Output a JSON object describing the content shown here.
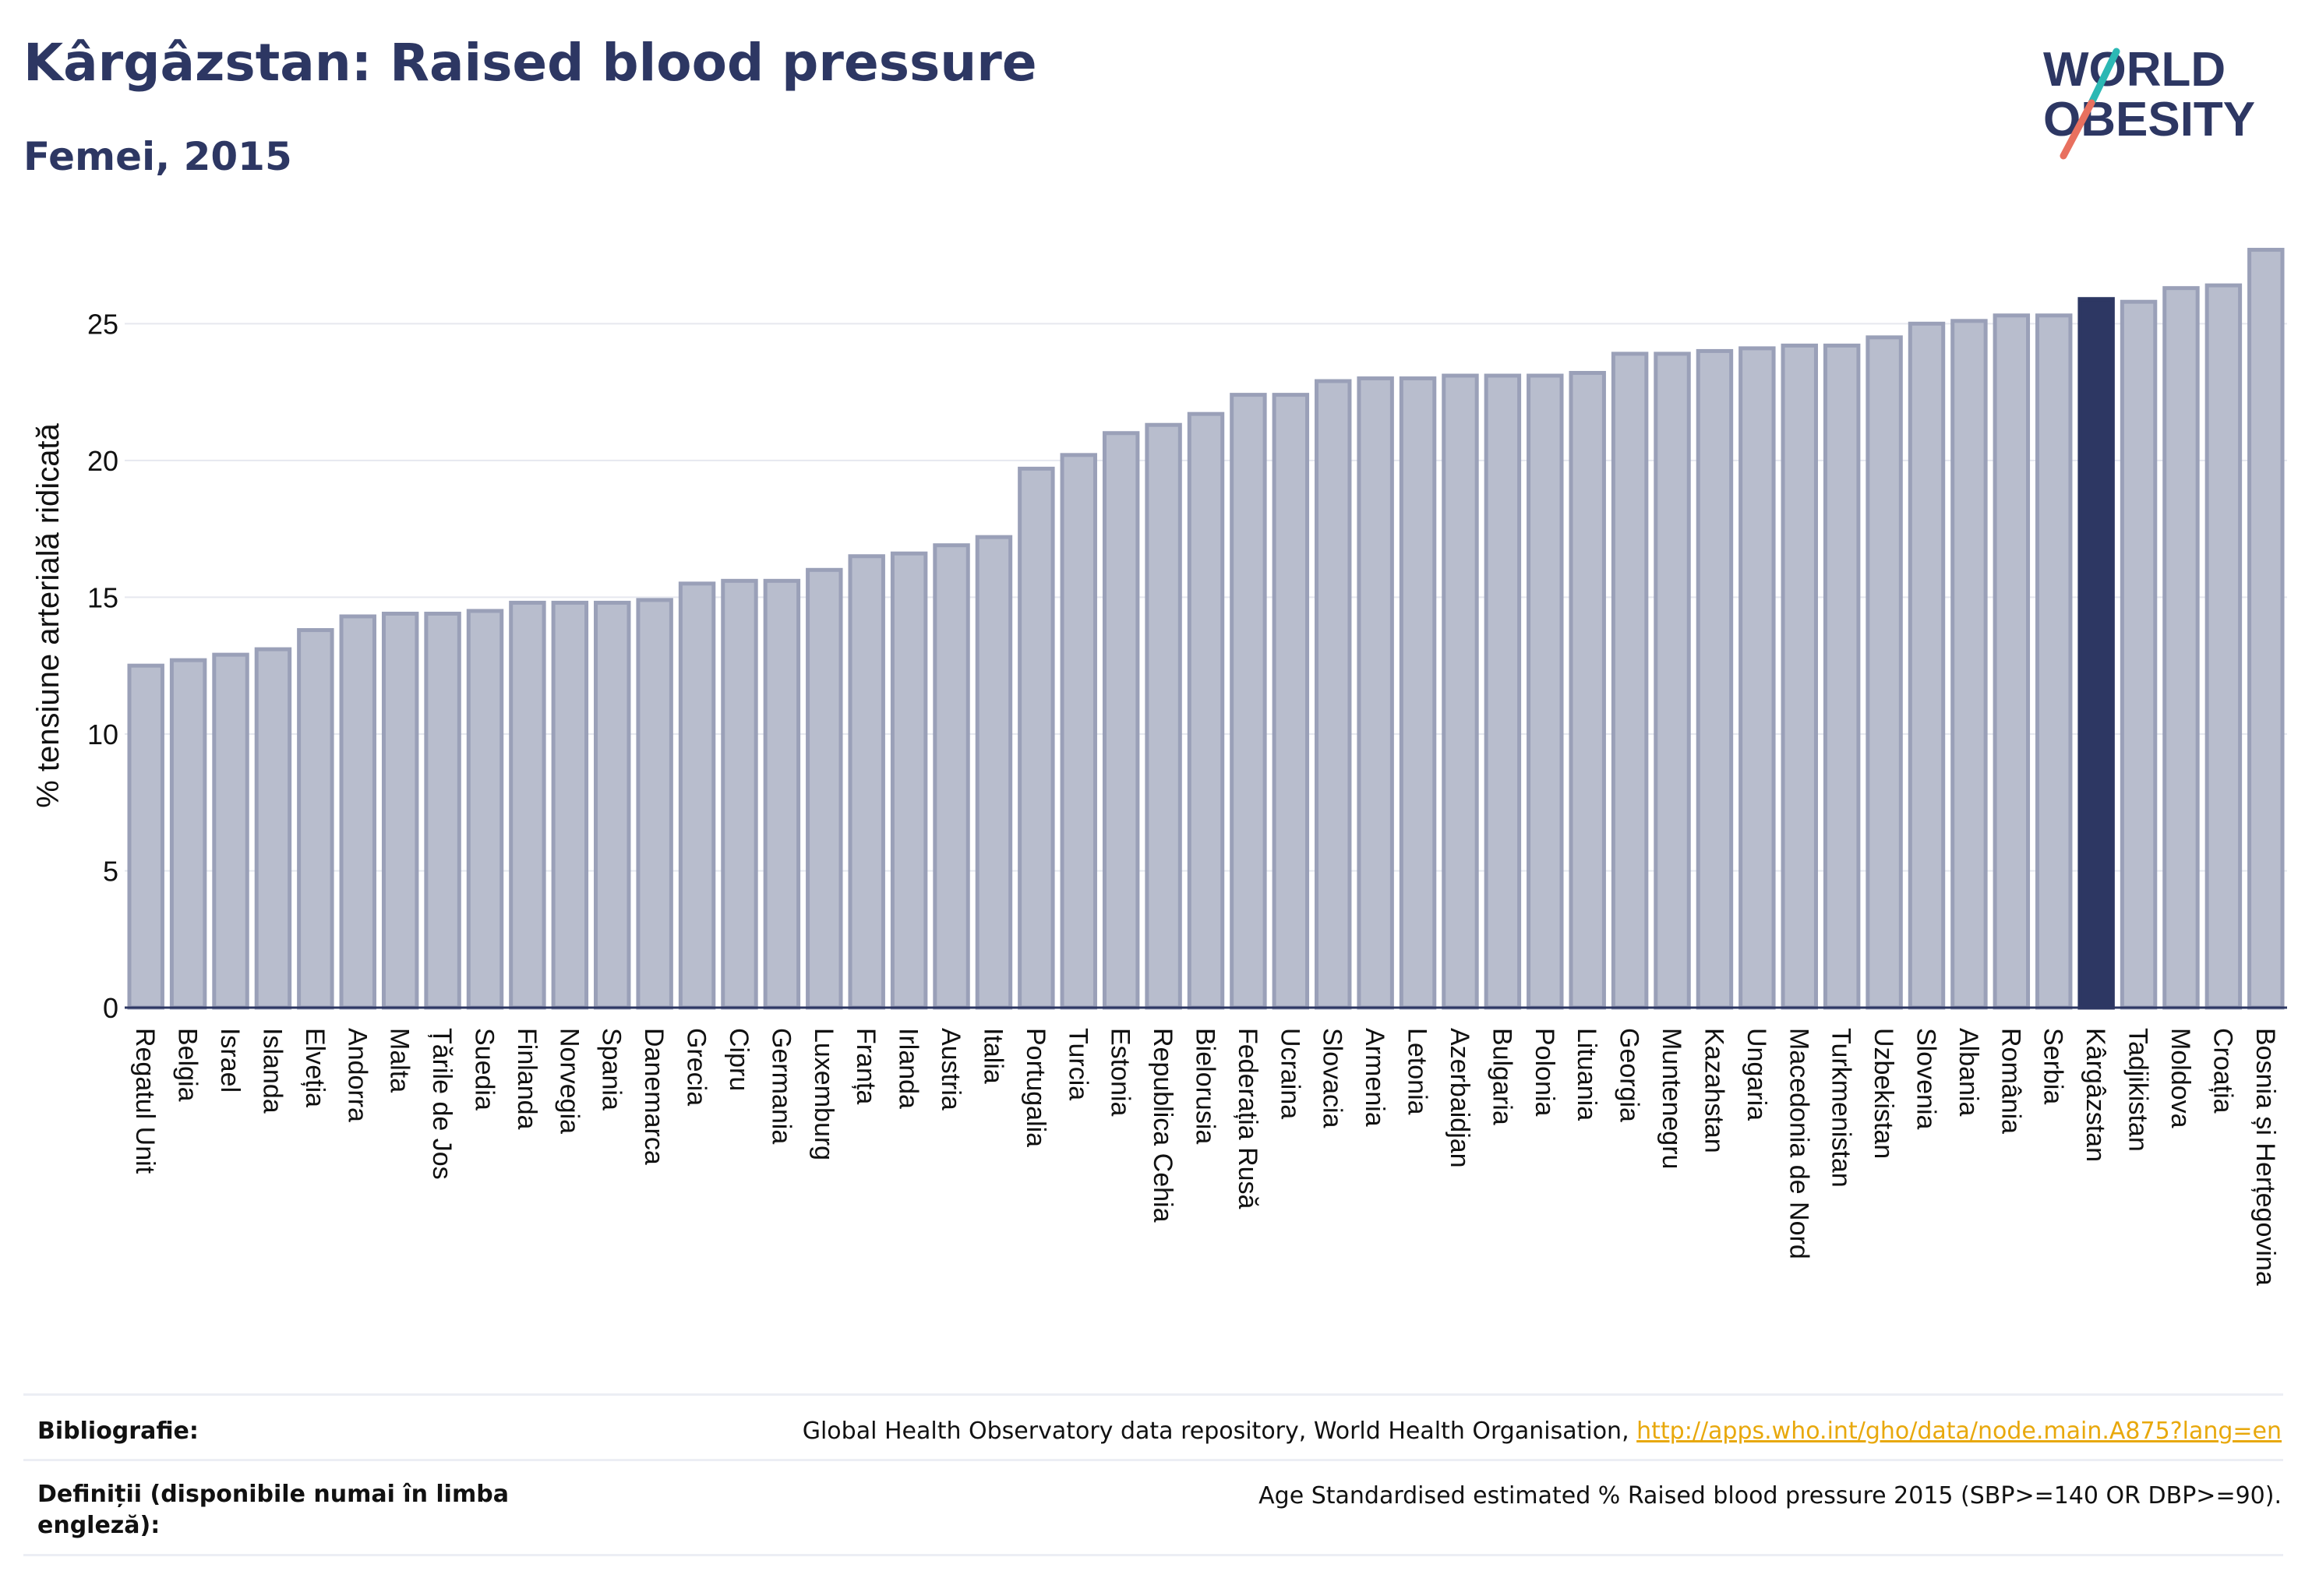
{
  "header": {
    "title": "Kârgâzstan: Raised blood pressure",
    "subtitle": "Femei, 2015"
  },
  "logo": {
    "line1": "WORLD",
    "line2": "OBESITY"
  },
  "colors": {
    "bar": "#b8bdcd",
    "bar_stroke": "#9aa0b8",
    "highlight": "#2d3763",
    "title": "#2d3763",
    "grid": "#e6e8ef",
    "logo_slash_teal": "#2cb8b4",
    "logo_slash_coral": "#e8705f",
    "link": "#e8a80c"
  },
  "chart_data": {
    "type": "bar",
    "ylabel": "% tensiune arterială ridicată",
    "ylim": [
      0,
      28
    ],
    "yticks": [
      0,
      5,
      10,
      15,
      20,
      25
    ],
    "grid": true,
    "highlight": "Kârgâzstan",
    "categories": [
      "Regatul Unit",
      "Belgia",
      "Israel",
      "Islanda",
      "Elveția",
      "Andorra",
      "Malta",
      "Țările de Jos",
      "Suedia",
      "Finlanda",
      "Norvegia",
      "Spania",
      "Danemarca",
      "Grecia",
      "Cipru",
      "Germania",
      "Luxemburg",
      "Franța",
      "Irlanda",
      "Austria",
      "Italia",
      "Portugalia",
      "Turcia",
      "Estonia",
      "Republica Cehia",
      "Bielorusia",
      "Federația Rusă",
      "Ucraina",
      "Slovacia",
      "Armenia",
      "Letonia",
      "Azerbaidjan",
      "Bulgaria",
      "Polonia",
      "Lituania",
      "Georgia",
      "Muntenegru",
      "Kazahstan",
      "Ungaria",
      "Macedonia de Nord",
      "Turkmenistan",
      "Uzbekistan",
      "Slovenia",
      "Albania",
      "România",
      "Serbia",
      "Kârgâzstan",
      "Tadjikistan",
      "Moldova",
      "Croația",
      "Bosnia și Herțegovina"
    ],
    "values": [
      12.5,
      12.7,
      12.9,
      13.1,
      13.8,
      14.3,
      14.4,
      14.4,
      14.5,
      14.8,
      14.8,
      14.8,
      14.9,
      15.5,
      15.6,
      15.6,
      16.0,
      16.5,
      16.6,
      16.9,
      17.2,
      19.7,
      20.2,
      21.0,
      21.3,
      21.7,
      22.4,
      22.4,
      22.9,
      23.0,
      23.0,
      23.1,
      23.1,
      23.1,
      23.2,
      23.9,
      23.9,
      24.0,
      24.1,
      24.2,
      24.2,
      24.5,
      25.0,
      25.1,
      25.3,
      25.3,
      25.9,
      25.8,
      26.3,
      26.4,
      27.7
    ]
  },
  "footer": {
    "sources_label": "Bibliografie:",
    "sources_text": "Global Health Observatory data repository, World Health Organisation, ",
    "sources_link": "http://apps.who.int/gho/data/node.main.A875?lang=en",
    "definitions_label": "Definiții (disponibile numai în limba engleză):",
    "definitions_text": "Age Standardised estimated % Raised blood pressure 2015 (SBP>=140 OR DBP>=90)."
  }
}
